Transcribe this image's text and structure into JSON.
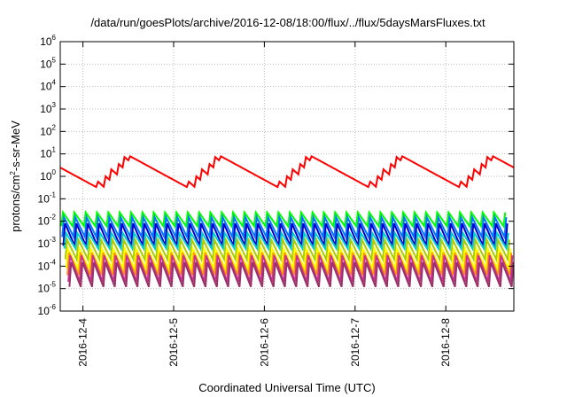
{
  "chart_data": {
    "type": "line",
    "title": "/data/run/goesPlots/archive/2016-12-08/18:00/flux/../flux/5daysMarsFluxes.txt",
    "xlabel": "Coordinated Universal Time (UTC)",
    "ylabel": "protons/cm2-s-sr-MeV",
    "ylabel_base": "protons/cm",
    "ylabel_sup": "2",
    "ylabel_rest": "-s-sr-MeV",
    "y_scale": "log",
    "ylim": [
      1e-06,
      1000000.0
    ],
    "y_ticks": [
      {
        "base": "10",
        "exp": "6"
      },
      {
        "base": "10",
        "exp": "5"
      },
      {
        "base": "10",
        "exp": "4"
      },
      {
        "base": "10",
        "exp": "3"
      },
      {
        "base": "10",
        "exp": "2"
      },
      {
        "base": "10",
        "exp": "1"
      },
      {
        "base": "10",
        "exp": "0"
      },
      {
        "base": "10",
        "exp": "-1"
      },
      {
        "base": "10",
        "exp": "-2"
      },
      {
        "base": "10",
        "exp": "-3"
      },
      {
        "base": "10",
        "exp": "-4"
      },
      {
        "base": "10",
        "exp": "-5"
      },
      {
        "base": "10",
        "exp": "-6"
      }
    ],
    "x_type": "date",
    "xlim": [
      "2016-12-03 18:00",
      "2016-12-08 18:00"
    ],
    "x_ticks": [
      "2016-12-4",
      "2016-12-5",
      "2016-12-6",
      "2016-12-7",
      "2016-12-8"
    ],
    "grid": true,
    "series": [
      {
        "color": "#ff0000",
        "values": "sawtooth ~0.3 to ~8",
        "min": 0.3,
        "max": 8,
        "period_hours": 24,
        "teeth_per_period": 5
      },
      {
        "color": "#00ff00",
        "min": 0.006,
        "max": 0.025,
        "period_hours": 3
      },
      {
        "color": "#0077ff",
        "min": 0.002,
        "max": 0.015,
        "period_hours": 3
      },
      {
        "color": "#0000cc",
        "min": 0.0008,
        "max": 0.008,
        "period_hours": 3
      },
      {
        "color": "#00cccc",
        "min": 0.0006,
        "max": 0.003,
        "period_hours": 3
      },
      {
        "color": "#aacc00",
        "min": 0.0002,
        "max": 0.0015,
        "period_hours": 3
      },
      {
        "color": "#ffff00",
        "min": 8e-05,
        "max": 0.0006,
        "period_hours": 3
      },
      {
        "color": "#ff9900",
        "min": 4e-05,
        "max": 0.0004,
        "period_hours": 3
      },
      {
        "color": "#cc3399",
        "min": 2e-05,
        "max": 0.0003,
        "period_hours": 3
      },
      {
        "color": "#993366",
        "min": 1.2e-05,
        "max": 0.00015,
        "period_hours": 3
      }
    ]
  }
}
